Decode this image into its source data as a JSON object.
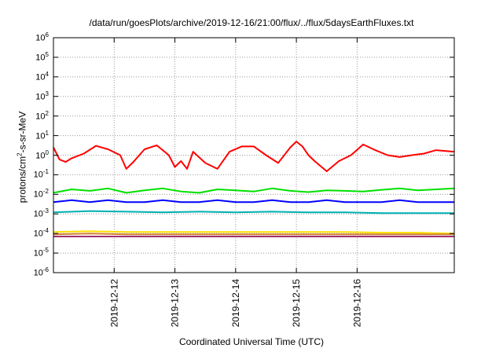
{
  "chart_data": {
    "type": "line",
    "title": "/data/run/goesPlots/archive/2019-12-16/21:00/flux/../flux/5daysEarthFluxes.txt",
    "xlabel": "Coordinated Universal Time (UTC)",
    "ylabel": "protons/cm²-s-sr-MeV",
    "yscale": "log",
    "ylim": [
      1e-06,
      1000000.0
    ],
    "xlim": [
      0,
      6.6
    ],
    "x_tick_labels": [
      "2019-12-12",
      "2019-12-13",
      "2019-12-14",
      "2019-12-15",
      "2019-12-16"
    ],
    "x_tick_positions": [
      1,
      2,
      3,
      4,
      5
    ],
    "y_tick_labels": [
      "10^-6",
      "10^-5",
      "10^-4",
      "10^-3",
      "10^-2",
      "10^-1",
      "10^0",
      "10^1",
      "10^2",
      "10^3",
      "10^4",
      "10^5",
      "10^6"
    ],
    "grid": true,
    "series": [
      {
        "color": "#ff0000",
        "x": [
          0,
          0.1,
          0.2,
          0.3,
          0.5,
          0.7,
          0.9,
          1.1,
          1.2,
          1.3,
          1.5,
          1.7,
          1.9,
          2.0,
          2.1,
          2.2,
          2.3,
          2.5,
          2.7,
          2.9,
          3.1,
          3.3,
          3.5,
          3.7,
          3.9,
          4.0,
          4.1,
          4.2,
          4.3,
          4.5,
          4.7,
          4.9,
          5.1,
          5.3,
          5.5,
          5.7,
          5.9,
          6.1,
          6.3,
          6.6
        ],
        "y": [
          2.5,
          0.6,
          0.45,
          0.7,
          1.2,
          3.0,
          2.0,
          1.0,
          0.2,
          0.4,
          2.0,
          3.2,
          1.0,
          0.25,
          0.5,
          0.2,
          1.5,
          0.4,
          0.2,
          1.5,
          2.8,
          2.8,
          1.0,
          0.4,
          2.5,
          5.0,
          2.8,
          1.0,
          0.5,
          0.15,
          0.5,
          1.0,
          3.5,
          1.8,
          1.0,
          0.8,
          1.0,
          1.2,
          1.8,
          1.5
        ]
      },
      {
        "color": "#00e000",
        "x": [
          0,
          0.3,
          0.6,
          0.9,
          1.2,
          1.5,
          1.8,
          2.1,
          2.4,
          2.7,
          3.0,
          3.3,
          3.6,
          3.9,
          4.2,
          4.5,
          4.8,
          5.1,
          5.4,
          5.7,
          6.0,
          6.3,
          6.6
        ],
        "y": [
          0.012,
          0.018,
          0.015,
          0.02,
          0.012,
          0.016,
          0.02,
          0.014,
          0.012,
          0.018,
          0.016,
          0.014,
          0.02,
          0.015,
          0.013,
          0.016,
          0.015,
          0.014,
          0.017,
          0.02,
          0.016,
          0.018,
          0.02
        ]
      },
      {
        "color": "#0000ff",
        "x": [
          0,
          0.3,
          0.6,
          0.9,
          1.2,
          1.5,
          1.8,
          2.1,
          2.4,
          2.7,
          3.0,
          3.3,
          3.6,
          3.9,
          4.2,
          4.5,
          4.8,
          5.1,
          5.4,
          5.7,
          6.0,
          6.3,
          6.6
        ],
        "y": [
          0.004,
          0.005,
          0.004,
          0.005,
          0.004,
          0.004,
          0.005,
          0.004,
          0.004,
          0.005,
          0.004,
          0.004,
          0.005,
          0.004,
          0.004,
          0.005,
          0.004,
          0.004,
          0.004,
          0.005,
          0.004,
          0.004,
          0.004
        ]
      },
      {
        "color": "#00b0b0",
        "x": [
          0,
          0.6,
          1.2,
          1.8,
          2.4,
          3.0,
          3.6,
          4.2,
          4.8,
          5.4,
          6.0,
          6.6
        ],
        "y": [
          0.0012,
          0.0014,
          0.0013,
          0.0012,
          0.0013,
          0.0012,
          0.0013,
          0.0012,
          0.0012,
          0.0011,
          0.0011,
          0.0011
        ]
      },
      {
        "color": "#ffe000",
        "x": [
          0,
          0.6,
          1.2,
          1.8,
          2.4,
          3.0,
          3.6,
          4.2,
          4.8,
          5.4,
          6.0,
          6.6
        ],
        "y": [
          0.00012,
          0.00013,
          0.00012,
          0.00012,
          0.00012,
          0.00012,
          0.00012,
          0.00012,
          0.00012,
          0.00011,
          0.00011,
          0.0001
        ]
      },
      {
        "color": "#d08030",
        "x": [
          0,
          0.6,
          1.2,
          1.8,
          2.4,
          3.0,
          3.6,
          4.2,
          4.8,
          5.4,
          6.0,
          6.6
        ],
        "y": [
          9e-05,
          0.0001,
          9e-05,
          9e-05,
          9e-05,
          9e-05,
          9e-05,
          9e-05,
          9e-05,
          9e-05,
          9e-05,
          9e-05
        ]
      },
      {
        "color": "#a03070",
        "x": [
          0,
          0.6,
          1.2,
          1.8,
          2.4,
          3.0,
          3.6,
          4.2,
          4.8,
          5.4,
          6.0,
          6.6
        ],
        "y": [
          7e-05,
          7e-05,
          7e-05,
          7e-05,
          7e-05,
          7e-05,
          7e-05,
          7e-05,
          7e-05,
          7e-05,
          7e-05,
          7e-05
        ]
      }
    ]
  }
}
